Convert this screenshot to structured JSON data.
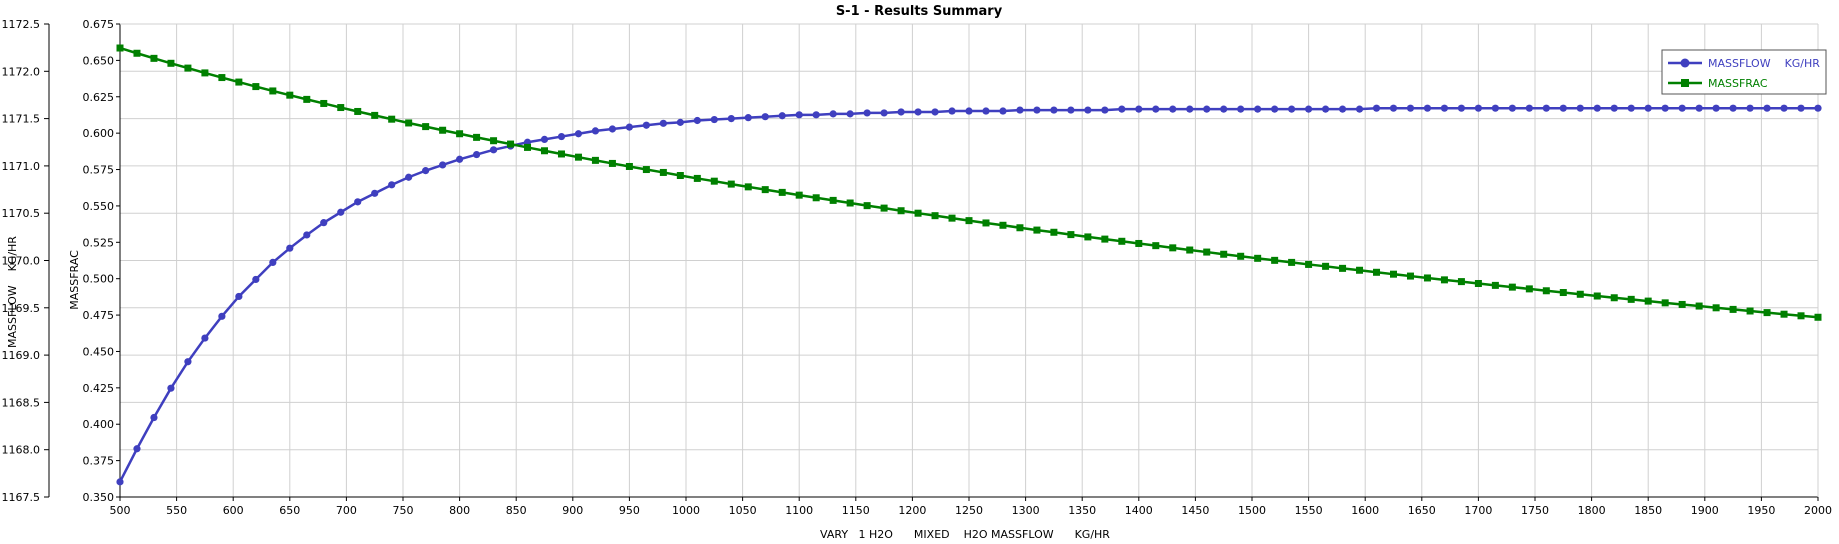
{
  "chart_data": {
    "type": "line",
    "title": "S-1 - Results Summary",
    "xlabel": "VARY   1 H2O      MIXED    H2O MASSFLOW      KG/HR",
    "y1label": "MASSFLOW    KG/HR",
    "y2label": "MASSFRAC",
    "xlim": [
      500,
      2000
    ],
    "y1lim": [
      1167.5,
      1172.5
    ],
    "y2lim": [
      0.35,
      0.675
    ],
    "x_ticks": [
      500,
      550,
      600,
      650,
      700,
      750,
      800,
      850,
      900,
      950,
      1000,
      1050,
      1100,
      1150,
      1200,
      1250,
      1300,
      1350,
      1400,
      1450,
      1500,
      1550,
      1600,
      1650,
      1700,
      1750,
      1800,
      1850,
      1900,
      1950,
      2000
    ],
    "x_tick_labels": [
      "500",
      "550",
      "600",
      "650",
      "700",
      "750",
      "800",
      "850",
      "900",
      "950",
      "1000",
      "1050",
      "1100",
      "1150",
      "1200",
      "1250",
      "1300",
      "1350",
      "1400",
      "1450",
      "1500",
      "1550",
      "1600",
      "1650",
      "1700",
      "1750",
      "1800",
      "1850",
      "1900",
      "1950",
      "2000"
    ],
    "y1_ticks": [
      1167.5,
      1168.0,
      1168.5,
      1169.0,
      1169.5,
      1170.0,
      1170.5,
      1171.0,
      1171.5,
      1172.0,
      1172.5
    ],
    "y1_tick_labels": [
      "1167.5",
      "1168.0",
      "1168.5",
      "1169.0",
      "1169.5",
      "1170.0",
      "1170.5",
      "1171.0",
      "1171.5",
      "1172.0",
      "1172.5"
    ],
    "y2_ticks": [
      0.35,
      0.375,
      0.4,
      0.425,
      0.45,
      0.475,
      0.5,
      0.525,
      0.55,
      0.575,
      0.6,
      0.625,
      0.65,
      0.675
    ],
    "y2_tick_labels": [
      "0.350",
      "0.375",
      "0.400",
      "0.425",
      "0.450",
      "0.475",
      "0.500",
      "0.525",
      "0.550",
      "0.575",
      "0.600",
      "0.625",
      "0.650",
      "0.675"
    ],
    "grid": true,
    "legend_position": "top-right",
    "x": [
      500,
      515,
      530,
      545,
      560,
      575,
      590,
      605,
      620,
      635,
      650,
      665,
      680,
      695,
      710,
      725,
      740,
      755,
      770,
      785,
      800,
      815,
      830,
      845,
      860,
      875,
      890,
      905,
      920,
      935,
      950,
      965,
      980,
      995,
      1010,
      1025,
      1040,
      1055,
      1070,
      1085,
      1100,
      1115,
      1130,
      1145,
      1160,
      1175,
      1190,
      1205,
      1220,
      1235,
      1250,
      1265,
      1280,
      1295,
      1310,
      1325,
      1340,
      1355,
      1370,
      1385,
      1400,
      1415,
      1430,
      1445,
      1460,
      1475,
      1490,
      1505,
      1520,
      1535,
      1550,
      1565,
      1580,
      1595,
      1610,
      1625,
      1640,
      1655,
      1670,
      1685,
      1700,
      1715,
      1730,
      1745,
      1760,
      1775,
      1790,
      1805,
      1820,
      1835,
      1850,
      1865,
      1880,
      1895,
      1910,
      1925,
      1940,
      1955,
      1970,
      1985,
      2000
    ],
    "series": [
      {
        "name": "MASSFLOW    KG/HR",
        "axis": "left",
        "color": "#3f3fbf",
        "marker": "circle",
        "values": [
          1167.66,
          1168.01,
          1168.34,
          1168.65,
          1168.93,
          1169.18,
          1169.41,
          1169.62,
          1169.8,
          1169.98,
          1170.13,
          1170.27,
          1170.4,
          1170.51,
          1170.62,
          1170.71,
          1170.8,
          1170.88,
          1170.95,
          1171.01,
          1171.07,
          1171.12,
          1171.17,
          1171.21,
          1171.25,
          1171.28,
          1171.31,
          1171.34,
          1171.37,
          1171.39,
          1171.41,
          1171.43,
          1171.45,
          1171.46,
          1171.48,
          1171.49,
          1171.5,
          1171.51,
          1171.52,
          1171.53,
          1171.54,
          1171.54,
          1171.55,
          1171.55,
          1171.56,
          1171.56,
          1171.57,
          1171.57,
          1171.57,
          1171.58,
          1171.58,
          1171.58,
          1171.58,
          1171.59,
          1171.59,
          1171.59,
          1171.59,
          1171.59,
          1171.59,
          1171.6,
          1171.6,
          1171.6,
          1171.6,
          1171.6,
          1171.6,
          1171.6,
          1171.6,
          1171.6,
          1171.6,
          1171.6,
          1171.6,
          1171.6,
          1171.6,
          1171.6,
          1171.61,
          1171.61,
          1171.61,
          1171.61,
          1171.61,
          1171.61,
          1171.61,
          1171.61,
          1171.61,
          1171.61,
          1171.61,
          1171.61,
          1171.61,
          1171.61,
          1171.61,
          1171.61,
          1171.61,
          1171.61,
          1171.61,
          1171.61,
          1171.61,
          1171.61,
          1171.61,
          1171.61,
          1171.61,
          1171.61,
          1171.61
        ]
      },
      {
        "name": "MASSFRAC",
        "axis": "right",
        "color": "#008000",
        "marker": "square",
        "values": [
          0.6585,
          0.6549,
          0.6514,
          0.648,
          0.6447,
          0.6414,
          0.6382,
          0.6351,
          0.632,
          0.629,
          0.6261,
          0.6232,
          0.6204,
          0.6176,
          0.6149,
          0.6122,
          0.6096,
          0.607,
          0.6045,
          0.602,
          0.5996,
          0.5971,
          0.5948,
          0.5925,
          0.5902,
          0.5879,
          0.5857,
          0.5835,
          0.5813,
          0.5792,
          0.5771,
          0.575,
          0.573,
          0.5709,
          0.5689,
          0.567,
          0.565,
          0.5631,
          0.5612,
          0.5593,
          0.5574,
          0.5556,
          0.5538,
          0.552,
          0.5502,
          0.5485,
          0.5467,
          0.545,
          0.5433,
          0.5416,
          0.5399,
          0.5383,
          0.5367,
          0.535,
          0.5334,
          0.5319,
          0.5303,
          0.5287,
          0.5272,
          0.5257,
          0.5242,
          0.5227,
          0.5212,
          0.5197,
          0.5183,
          0.5168,
          0.5154,
          0.514,
          0.5126,
          0.5112,
          0.5098,
          0.5085,
          0.5071,
          0.5058,
          0.5044,
          0.5031,
          0.5018,
          0.5005,
          0.4992,
          0.498,
          0.4967,
          0.4954,
          0.4942,
          0.493,
          0.4917,
          0.4905,
          0.4893,
          0.4881,
          0.4869,
          0.4858,
          0.4846,
          0.4834,
          0.4823,
          0.4812,
          0.48,
          0.4789,
          0.4778,
          0.4767,
          0.4756,
          0.4745,
          0.4735
        ]
      }
    ]
  }
}
